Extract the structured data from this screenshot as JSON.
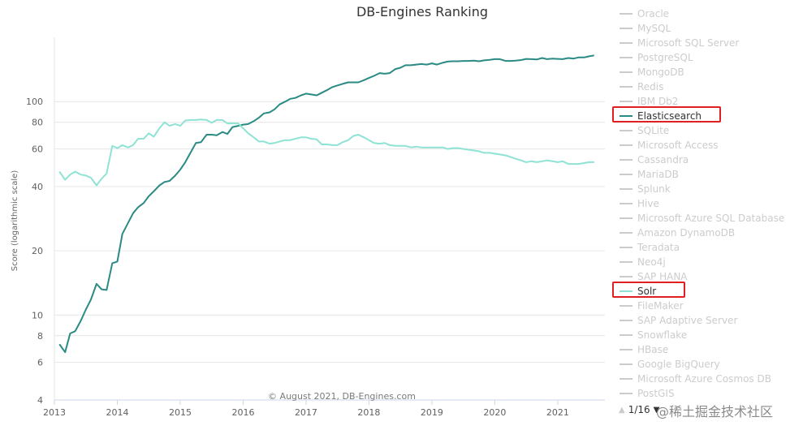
{
  "chart_data": {
    "type": "line",
    "title": "DB-Engines Ranking",
    "ylabel": "Score (logarithmic scale)",
    "yscale": "log",
    "ylim": [
      4,
      200
    ],
    "yticks": [
      4,
      6,
      8,
      10,
      20,
      40,
      60,
      80,
      100
    ],
    "xlim": [
      2013.0,
      2021.75
    ],
    "xticks": [
      "2013",
      "2014",
      "2015",
      "2016",
      "2017",
      "2018",
      "2019",
      "2020",
      "2021"
    ],
    "credit": "© August 2021, DB-Engines.com",
    "grid": true,
    "legend_position": "right",
    "series": [
      {
        "name": "Elasticsearch",
        "color": "#2a8a84",
        "x": [
          2013.08,
          2013.17,
          2013.25,
          2013.33,
          2013.42,
          2013.5,
          2013.58,
          2013.67,
          2013.75,
          2013.83,
          2013.92,
          2014.0,
          2014.08,
          2014.17,
          2014.25,
          2014.33,
          2014.42,
          2014.5,
          2014.58,
          2014.67,
          2014.75,
          2014.83,
          2014.92,
          2015.0,
          2015.08,
          2015.17,
          2015.25,
          2015.33,
          2015.42,
          2015.5,
          2015.58,
          2015.67,
          2015.75,
          2015.83,
          2015.92,
          2016.0,
          2016.08,
          2016.17,
          2016.25,
          2016.33,
          2016.42,
          2016.5,
          2016.58,
          2016.67,
          2016.75,
          2016.83,
          2016.92,
          2017.0,
          2017.08,
          2017.17,
          2017.25,
          2017.33,
          2017.42,
          2017.5,
          2017.58,
          2017.67,
          2017.75,
          2017.83,
          2017.92,
          2018.0,
          2018.08,
          2018.17,
          2018.25,
          2018.33,
          2018.42,
          2018.5,
          2018.58,
          2018.67,
          2018.75,
          2018.83,
          2018.92,
          2019.0,
          2019.08,
          2019.17,
          2019.25,
          2019.33,
          2019.42,
          2019.5,
          2019.58,
          2019.67,
          2019.75,
          2019.83,
          2019.92,
          2020.0,
          2020.08,
          2020.17,
          2020.25,
          2020.33,
          2020.42,
          2020.5,
          2020.58,
          2020.67,
          2020.75,
          2020.83,
          2020.92,
          2021.0,
          2021.08,
          2021.17,
          2021.25,
          2021.33,
          2021.42,
          2021.5,
          2021.58
        ],
        "y": [
          7.3,
          6.7,
          8.2,
          8.4,
          9.4,
          10.6,
          11.8,
          14.0,
          13.2,
          13.1,
          17.5,
          17.8,
          24.0,
          27.0,
          30.0,
          32.0,
          33.5,
          36.0,
          38.0,
          40.5,
          42.0,
          42.5,
          45.0,
          48.0,
          52.0,
          58.0,
          64.0,
          64.5,
          70.0,
          70.0,
          69.5,
          72.0,
          70.5,
          76.0,
          77.0,
          78.0,
          78.5,
          81.0,
          84.0,
          88.0,
          89.0,
          92.0,
          97.0,
          100.0,
          103.0,
          104.0,
          107.0,
          109.0,
          108.0,
          107.0,
          110.0,
          113.0,
          117.0,
          119.0,
          121.0,
          123.0,
          123.0,
          123.0,
          126.0,
          129.0,
          132.0,
          136.0,
          135.0,
          136.0,
          142.0,
          144.0,
          148.0,
          148.0,
          149.0,
          150.0,
          149.0,
          151.0,
          149.0,
          152.0,
          154.0,
          154.5,
          154.5,
          155.0,
          155.0,
          155.5,
          154.5,
          156.0,
          157.0,
          158.0,
          158.0,
          155.0,
          155.0,
          155.5,
          156.5,
          158.5,
          158.0,
          157.5,
          160.0,
          158.0,
          159.0,
          158.5,
          158.0,
          160.0,
          159.0,
          161.0,
          161.0,
          163.0,
          164.5
        ]
      },
      {
        "name": "Solr",
        "color": "#8fe3d4",
        "x": [
          2013.08,
          2013.17,
          2013.25,
          2013.33,
          2013.42,
          2013.5,
          2013.58,
          2013.67,
          2013.75,
          2013.83,
          2013.92,
          2014.0,
          2014.08,
          2014.17,
          2014.25,
          2014.33,
          2014.42,
          2014.5,
          2014.58,
          2014.67,
          2014.75,
          2014.83,
          2014.92,
          2015.0,
          2015.08,
          2015.17,
          2015.25,
          2015.33,
          2015.42,
          2015.5,
          2015.58,
          2015.67,
          2015.75,
          2015.83,
          2015.92,
          2016.0,
          2016.08,
          2016.17,
          2016.25,
          2016.33,
          2016.42,
          2016.5,
          2016.58,
          2016.67,
          2016.75,
          2016.83,
          2016.92,
          2017.0,
          2017.08,
          2017.17,
          2017.25,
          2017.33,
          2017.42,
          2017.5,
          2017.58,
          2017.67,
          2017.75,
          2017.83,
          2017.92,
          2018.0,
          2018.08,
          2018.17,
          2018.25,
          2018.33,
          2018.42,
          2018.5,
          2018.58,
          2018.67,
          2018.75,
          2018.83,
          2018.92,
          2019.0,
          2019.08,
          2019.17,
          2019.25,
          2019.33,
          2019.42,
          2019.5,
          2019.58,
          2019.67,
          2019.75,
          2019.83,
          2019.92,
          2020.0,
          2020.08,
          2020.17,
          2020.25,
          2020.33,
          2020.42,
          2020.5,
          2020.58,
          2020.67,
          2020.75,
          2020.83,
          2020.92,
          2021.0,
          2021.08,
          2021.17,
          2021.25,
          2021.33,
          2021.42,
          2021.5,
          2021.58
        ],
        "y": [
          47.0,
          43.0,
          45.5,
          47.0,
          45.5,
          45.0,
          44.0,
          40.5,
          43.5,
          46.0,
          62.0,
          60.5,
          62.5,
          61.0,
          62.5,
          67.0,
          67.0,
          71.0,
          68.5,
          75.0,
          80.0,
          77.0,
          78.5,
          77.0,
          81.5,
          82.0,
          82.0,
          82.5,
          82.0,
          79.5,
          82.0,
          82.0,
          79.0,
          79.0,
          79.0,
          75.0,
          71.0,
          68.0,
          65.0,
          65.0,
          63.5,
          64.0,
          65.0,
          66.0,
          66.0,
          67.0,
          68.0,
          68.0,
          67.0,
          66.5,
          63.0,
          63.0,
          62.5,
          62.5,
          64.5,
          66.0,
          69.0,
          70.0,
          68.0,
          66.0,
          64.0,
          63.5,
          64.0,
          62.5,
          62.0,
          62.0,
          62.0,
          61.0,
          61.5,
          61.0,
          61.0,
          61.0,
          61.0,
          61.0,
          60.0,
          60.5,
          60.5,
          60.0,
          59.5,
          59.0,
          58.5,
          57.5,
          57.5,
          57.0,
          56.5,
          56.0,
          55.0,
          54.0,
          53.0,
          52.0,
          52.5,
          52.0,
          52.5,
          53.0,
          52.5,
          52.0,
          52.5,
          51.0,
          51.0,
          51.0,
          51.5,
          52.0,
          52.0
        ]
      }
    ]
  },
  "legend": {
    "items": [
      {
        "label": "Oracle",
        "state": "dim"
      },
      {
        "label": "MySQL",
        "state": "dim"
      },
      {
        "label": "Microsoft SQL Server",
        "state": "dim"
      },
      {
        "label": "PostgreSQL",
        "state": "dim"
      },
      {
        "label": "MongoDB",
        "state": "dim"
      },
      {
        "label": "Redis",
        "state": "dim"
      },
      {
        "label": "IBM Db2",
        "state": "dim"
      },
      {
        "label": "Elasticsearch",
        "state": "active",
        "color": "#2a8a84",
        "highlight": true
      },
      {
        "label": "SQLite",
        "state": "dim"
      },
      {
        "label": "Microsoft Access",
        "state": "dim"
      },
      {
        "label": "Cassandra",
        "state": "dim"
      },
      {
        "label": "MariaDB",
        "state": "dim"
      },
      {
        "label": "Splunk",
        "state": "dim"
      },
      {
        "label": "Hive",
        "state": "dim"
      },
      {
        "label": "Microsoft Azure SQL Database",
        "state": "dim"
      },
      {
        "label": "Amazon DynamoDB",
        "state": "dim"
      },
      {
        "label": "Teradata",
        "state": "dim"
      },
      {
        "label": "Neo4j",
        "state": "dim"
      },
      {
        "label": "SAP HANA",
        "state": "dim"
      },
      {
        "label": "Solr",
        "state": "active",
        "color": "#8fe3d4",
        "highlight": true
      },
      {
        "label": "FileMaker",
        "state": "dim"
      },
      {
        "label": "SAP Adaptive Server",
        "state": "dim"
      },
      {
        "label": "Snowflake",
        "state": "dim"
      },
      {
        "label": "HBase",
        "state": "dim"
      },
      {
        "label": "Google BigQuery",
        "state": "dim"
      },
      {
        "label": "Microsoft Azure Cosmos DB",
        "state": "dim"
      },
      {
        "label": "PostGIS",
        "state": "dim"
      }
    ],
    "pager": {
      "text": "1/16"
    }
  },
  "watermark": "@稀土掘金技术社区"
}
